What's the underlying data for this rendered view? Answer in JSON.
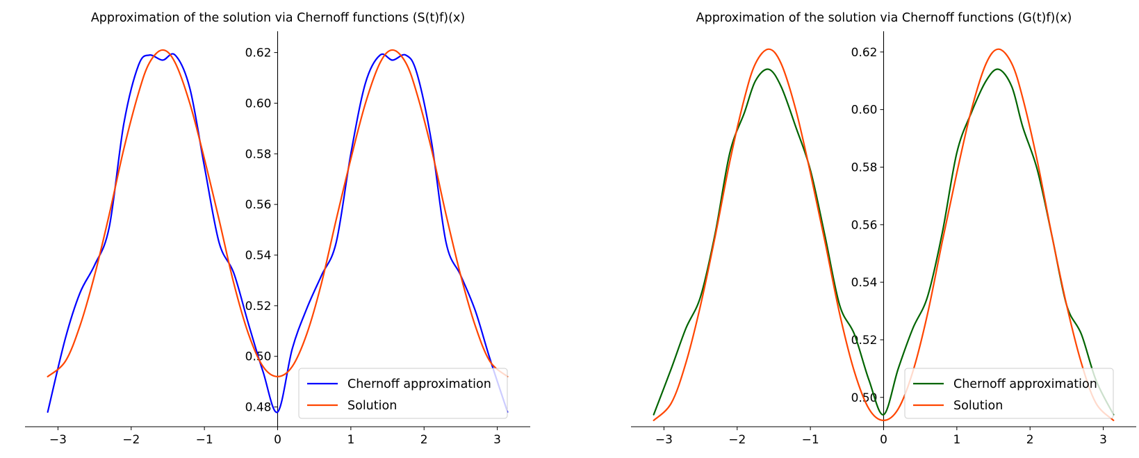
{
  "colors": {
    "approx_left": "#0000ff",
    "approx_right": "#006400",
    "solution": "#ff4500",
    "axis": "#000000",
    "legend_border": "#cccccc"
  },
  "chart_data": [
    {
      "type": "line",
      "title": "Approximation of the solution via Chernoff functions (S(t)f)(x)",
      "xlabel": "",
      "ylabel": "",
      "xlim": [
        -3.45,
        3.45
      ],
      "ylim": [
        0.4722,
        0.6284
      ],
      "xticks": [
        -3,
        -2,
        -1,
        0,
        1,
        2,
        3
      ],
      "xtick_labels": [
        "−3",
        "−2",
        "−1",
        "0",
        "1",
        "2",
        "3"
      ],
      "yticks": [
        0.48,
        0.5,
        0.52,
        0.54,
        0.56,
        0.58,
        0.6,
        0.62
      ],
      "ytick_labels": [
        "0.48",
        "0.50",
        "0.52",
        "0.54",
        "0.56",
        "0.58",
        "0.60",
        "0.62"
      ],
      "spines": "centered at origin",
      "grid": false,
      "legend_position": "lower-right",
      "x": [
        -3.14,
        -2.9,
        -2.7,
        -2.5,
        -2.3,
        -2.1,
        -1.9,
        -1.75,
        -1.57,
        -1.4,
        -1.2,
        -1.0,
        -0.8,
        -0.6,
        -0.4,
        -0.2,
        0.0,
        0.2,
        0.4,
        0.6,
        0.8,
        1.0,
        1.2,
        1.4,
        1.57,
        1.75,
        1.9,
        2.1,
        2.3,
        2.5,
        2.7,
        2.9,
        3.14
      ],
      "series": [
        {
          "name": "Chernoff approximation",
          "values": [
            0.478,
            0.507,
            0.525,
            0.536,
            0.551,
            0.592,
            0.615,
            0.619,
            0.617,
            0.619,
            0.606,
            0.575,
            0.545,
            0.533,
            0.513,
            0.494,
            0.478,
            0.503,
            0.519,
            0.532,
            0.545,
            0.58,
            0.608,
            0.619,
            0.617,
            0.619,
            0.612,
            0.585,
            0.545,
            0.532,
            0.518,
            0.499,
            0.478
          ]
        },
        {
          "name": "Solution",
          "values": [
            0.492,
            0.498,
            0.512,
            0.532,
            0.556,
            0.582,
            0.604,
            0.616,
            0.621,
            0.616,
            0.6,
            0.578,
            0.554,
            0.529,
            0.509,
            0.496,
            0.492,
            0.496,
            0.509,
            0.529,
            0.554,
            0.578,
            0.6,
            0.616,
            0.621,
            0.616,
            0.604,
            0.582,
            0.556,
            0.532,
            0.512,
            0.498,
            0.492
          ]
        }
      ]
    },
    {
      "type": "line",
      "title": "Approximation of the solution via Chernoff functions (G(t)f)(x)",
      "xlabel": "",
      "ylabel": "",
      "xlim": [
        -3.45,
        3.45
      ],
      "ylim": [
        0.4898,
        0.6272
      ],
      "xticks": [
        -3,
        -2,
        -1,
        0,
        1,
        2,
        3
      ],
      "xtick_labels": [
        "−3",
        "−2",
        "−1",
        "0",
        "1",
        "2",
        "3"
      ],
      "yticks": [
        0.5,
        0.52,
        0.54,
        0.56,
        0.58,
        0.6,
        0.62
      ],
      "ytick_labels": [
        "0.50",
        "0.52",
        "0.54",
        "0.56",
        "0.58",
        "0.60",
        "0.62"
      ],
      "spines": "centered at origin",
      "grid": false,
      "legend_position": "lower-right",
      "x": [
        -3.14,
        -2.9,
        -2.7,
        -2.5,
        -2.3,
        -2.1,
        -1.9,
        -1.75,
        -1.57,
        -1.4,
        -1.2,
        -1.0,
        -0.8,
        -0.6,
        -0.4,
        -0.2,
        0.0,
        0.2,
        0.4,
        0.6,
        0.8,
        1.0,
        1.2,
        1.4,
        1.57,
        1.75,
        1.9,
        2.1,
        2.3,
        2.5,
        2.7,
        2.9,
        3.14
      ],
      "series": [
        {
          "name": "Chernoff approximation",
          "values": [
            0.494,
            0.51,
            0.524,
            0.535,
            0.557,
            0.585,
            0.599,
            0.61,
            0.614,
            0.608,
            0.594,
            0.579,
            0.556,
            0.532,
            0.522,
            0.506,
            0.494,
            0.51,
            0.524,
            0.535,
            0.557,
            0.585,
            0.599,
            0.61,
            0.614,
            0.608,
            0.594,
            0.579,
            0.556,
            0.532,
            0.522,
            0.506,
            0.494
          ]
        },
        {
          "name": "Solution",
          "values": [
            0.492,
            0.498,
            0.512,
            0.532,
            0.556,
            0.582,
            0.604,
            0.616,
            0.621,
            0.616,
            0.6,
            0.578,
            0.554,
            0.529,
            0.509,
            0.496,
            0.492,
            0.496,
            0.509,
            0.529,
            0.554,
            0.578,
            0.6,
            0.616,
            0.621,
            0.616,
            0.604,
            0.582,
            0.556,
            0.532,
            0.512,
            0.498,
            0.492
          ]
        }
      ]
    }
  ]
}
